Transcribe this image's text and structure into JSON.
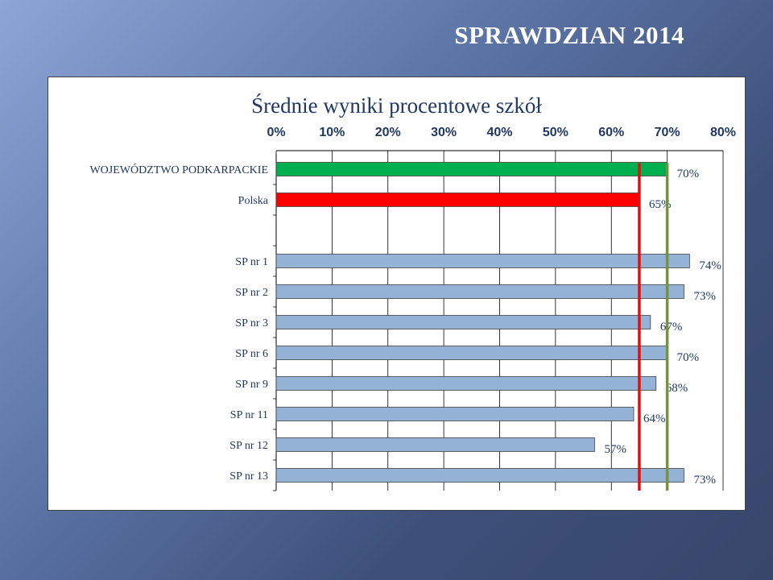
{
  "slide": {
    "title": "SPRAWDZIAN 2014"
  },
  "chart_data": {
    "type": "bar",
    "orientation": "horizontal",
    "title": "Średnie wyniki procentowe szkół",
    "xlim": [
      0,
      80
    ],
    "x_ticks": [
      "0%",
      "10%",
      "20%",
      "30%",
      "40%",
      "50%",
      "60%",
      "70%",
      "80%"
    ],
    "x_axis_position": "top",
    "grid": true,
    "categories": [
      "WOJEWÓDZTWO PODKARPACKIE",
      "Polska",
      "",
      "SP nr 1",
      "SP nr 2",
      "SP nr 3",
      "SP nr 6",
      "SP nr 9",
      "SP nr 11",
      "SP nr 12",
      "SP nr 13"
    ],
    "values": [
      70,
      65,
      null,
      74,
      73,
      67,
      70,
      68,
      64,
      57,
      73
    ],
    "value_labels": [
      "70%",
      "65%",
      "",
      "74%",
      "73%",
      "67%",
      "70%",
      "68%",
      "64%",
      "57%",
      "73%"
    ],
    "bar_colors": [
      "#00b050",
      "#ff0000",
      "",
      "#95b3d7",
      "#95b3d7",
      "#95b3d7",
      "#95b3d7",
      "#95b3d7",
      "#95b3d7",
      "#95b3d7",
      "#95b3d7"
    ],
    "reference_lines": [
      {
        "value": 65,
        "color": "#e01010"
      },
      {
        "value": 70,
        "color": "#76923c"
      }
    ]
  }
}
